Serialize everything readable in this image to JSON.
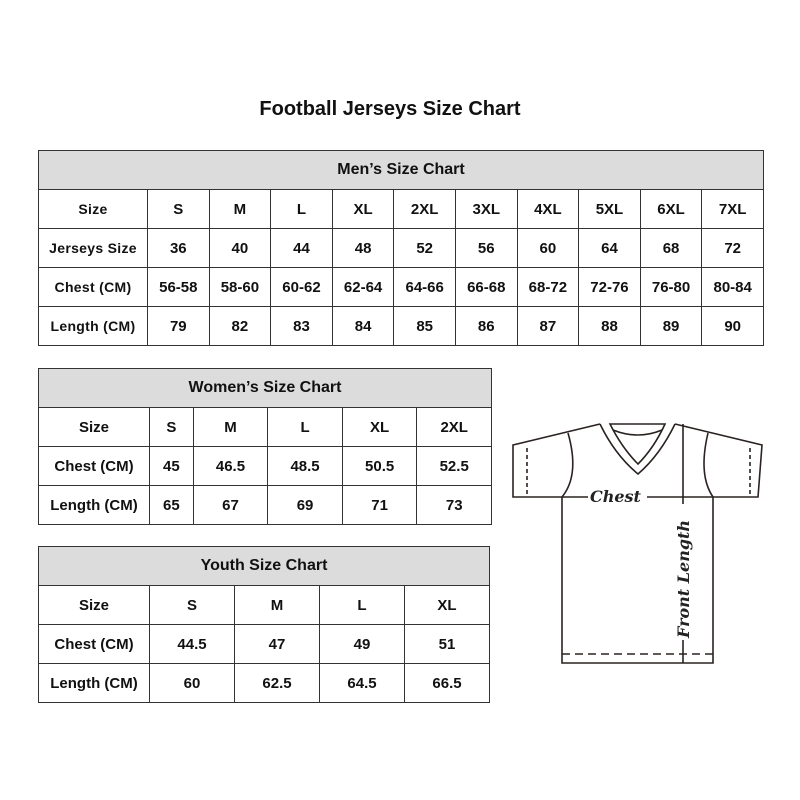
{
  "title": "Football Jerseys Size Chart",
  "men": {
    "heading": "Men’s Size Chart",
    "rows": [
      [
        "Size",
        "S",
        "M",
        "L",
        "XL",
        "2XL",
        "3XL",
        "4XL",
        "5XL",
        "6XL",
        "7XL"
      ],
      [
        "Jerseys Size",
        "36",
        "40",
        "44",
        "48",
        "52",
        "56",
        "60",
        "64",
        "68",
        "72"
      ],
      [
        "Chest (CM)",
        "56-58",
        "58-60",
        "60-62",
        "62-64",
        "64-66",
        "66-68",
        "68-72",
        "72-76",
        "76-80",
        "80-84"
      ],
      [
        "Length (CM)",
        "79",
        "82",
        "83",
        "84",
        "85",
        "86",
        "87",
        "88",
        "89",
        "90"
      ]
    ]
  },
  "women": {
    "heading": "Women’s Size Chart",
    "rows": [
      [
        "Size",
        "S",
        "M",
        "L",
        "XL",
        "2XL"
      ],
      [
        "Chest (CM)",
        "45",
        "46.5",
        "48.5",
        "50.5",
        "52.5"
      ],
      [
        "Length (CM)",
        "65",
        "67",
        "69",
        "71",
        "73"
      ]
    ]
  },
  "youth": {
    "heading": "Youth Size Chart",
    "rows": [
      [
        "Size",
        "S",
        "M",
        "L",
        "XL"
      ],
      [
        "Chest (CM)",
        "44.5",
        "47",
        "49",
        "51"
      ],
      [
        "Length (CM)",
        "60",
        "62.5",
        "64.5",
        "66.5"
      ]
    ]
  },
  "diagram": {
    "chest_label": "Chest",
    "length_label": "Front Length"
  },
  "colors": {
    "header_bg": "#dcdcdc",
    "border": "#333333"
  }
}
